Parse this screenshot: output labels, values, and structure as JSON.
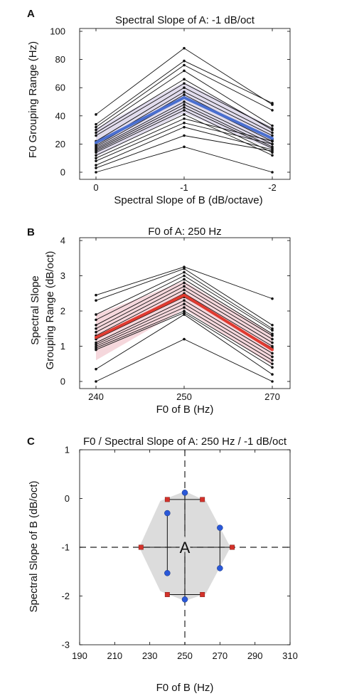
{
  "chart_data": [
    {
      "panel": "A",
      "type": "line",
      "title": "Spectral Slope of A: -1 dB/oct",
      "xlabel": "Spectral Slope of B (dB/octave)",
      "ylabel": "F0 Grouping Range (Hz)",
      "categories": [
        "0",
        "-1",
        "-2"
      ],
      "ylim": [
        0,
        100
      ],
      "yticks": [
        "0",
        "20",
        "40",
        "60",
        "80",
        "100"
      ],
      "mean": {
        "values": [
          21,
          53,
          24
        ],
        "color": "#4a6fd0"
      },
      "band": {
        "lower": [
          11,
          42,
          16
        ],
        "upper": [
          31,
          64,
          32
        ],
        "color": "#dcd6ea"
      },
      "subjects": [
        [
          41,
          88,
          48
        ],
        [
          34,
          79,
          49
        ],
        [
          32,
          76,
          44
        ],
        [
          30,
          72,
          33
        ],
        [
          28,
          66,
          30
        ],
        [
          26,
          63,
          31
        ],
        [
          22,
          60,
          28
        ],
        [
          20,
          57,
          26
        ],
        [
          19,
          55,
          23
        ],
        [
          18,
          53,
          22
        ],
        [
          17,
          50,
          20
        ],
        [
          16,
          48,
          18
        ],
        [
          15,
          46,
          17
        ],
        [
          14,
          44,
          14
        ],
        [
          12,
          41,
          12
        ],
        [
          10,
          38,
          22
        ],
        [
          8,
          35,
          20
        ],
        [
          5,
          32,
          16
        ],
        [
          3,
          26,
          15
        ],
        [
          0,
          18,
          0
        ]
      ]
    },
    {
      "panel": "B",
      "type": "line",
      "title": "F0 of A: 250 Hz",
      "xlabel": "F0 of B (Hz)",
      "ylabel": [
        "Spectral Slope",
        "Grouping Range (dB/oct)"
      ],
      "categories": [
        "240",
        "250",
        "270"
      ],
      "ylim": [
        0,
        4
      ],
      "yticks": [
        "0",
        "1",
        "2",
        "3",
        "4"
      ],
      "mean": {
        "values": [
          1.25,
          2.45,
          0.9
        ],
        "color": "#e03a30"
      },
      "band": {
        "lower": [
          0.6,
          2.05,
          0.45
        ],
        "upper": [
          1.9,
          2.85,
          1.35
        ],
        "color": "#f3d0d6"
      },
      "subjects": [
        [
          2.45,
          3.25,
          2.35
        ],
        [
          2.3,
          3.2,
          1.6
        ],
        [
          1.9,
          3.1,
          1.5
        ],
        [
          1.75,
          3.0,
          1.45
        ],
        [
          1.6,
          2.9,
          1.35
        ],
        [
          1.5,
          2.8,
          1.3
        ],
        [
          1.4,
          2.7,
          1.2
        ],
        [
          1.3,
          2.6,
          1.1
        ],
        [
          1.25,
          2.5,
          1.0
        ],
        [
          1.2,
          2.4,
          0.95
        ],
        [
          1.1,
          2.3,
          0.8
        ],
        [
          1.05,
          2.2,
          0.7
        ],
        [
          1.0,
          2.1,
          0.6
        ],
        [
          0.95,
          2.0,
          0.5
        ],
        [
          0.9,
          1.95,
          0.4
        ],
        [
          0.35,
          1.9,
          0.2
        ],
        [
          0.0,
          1.2,
          0.0
        ]
      ]
    },
    {
      "panel": "C",
      "type": "scatter",
      "title": "F0 / Spectral Slope of A: 250 Hz / -1 dB/oct",
      "xlabel": "F0 of B (Hz)",
      "ylabel": "Spectral Slope of B (dB/oct)",
      "xlim": [
        190,
        310
      ],
      "ylim": [
        -3,
        1
      ],
      "xticks": [
        "190",
        "210",
        "230",
        "250",
        "270",
        "290",
        "310"
      ],
      "yticks": [
        "-3",
        "-2",
        "-1",
        "0",
        "1"
      ],
      "center_label": "A",
      "center": [
        250,
        -1
      ],
      "hull": [
        [
          250,
          0.15
        ],
        [
          262,
          -0.05
        ],
        [
          276,
          -1
        ],
        [
          262,
          -1.95
        ],
        [
          250,
          -2.1
        ],
        [
          236,
          -1.9
        ],
        [
          224,
          -1
        ],
        [
          236,
          -0.05
        ]
      ],
      "hull_color": "#dcdcdc",
      "blue_points": [
        [
          250,
          0.12
        ],
        [
          240,
          -0.3
        ],
        [
          240,
          -1.53
        ],
        [
          250,
          -2.07
        ],
        [
          270,
          -0.6
        ],
        [
          270,
          -1.43
        ]
      ],
      "red_points": [
        [
          240,
          -0.02
        ],
        [
          260,
          -0.02
        ],
        [
          225,
          -1
        ],
        [
          277,
          -1
        ],
        [
          240,
          -1.97
        ],
        [
          260,
          -1.97
        ]
      ],
      "error_bars": [
        {
          "axis": "x",
          "y": -0.02,
          "from": 240,
          "to": 260
        },
        {
          "axis": "x",
          "y": -1,
          "from": 225,
          "to": 277
        },
        {
          "axis": "x",
          "y": -1.97,
          "from": 240,
          "to": 260
        },
        {
          "axis": "y",
          "x": 250,
          "from": 0.12,
          "to": -2.07
        },
        {
          "axis": "y",
          "x": 240,
          "from": -0.3,
          "to": -1.53
        },
        {
          "axis": "y",
          "x": 270,
          "from": -0.6,
          "to": -1.43
        }
      ],
      "blue_color": "#2a58d8",
      "red_color": "#d4312a"
    }
  ]
}
